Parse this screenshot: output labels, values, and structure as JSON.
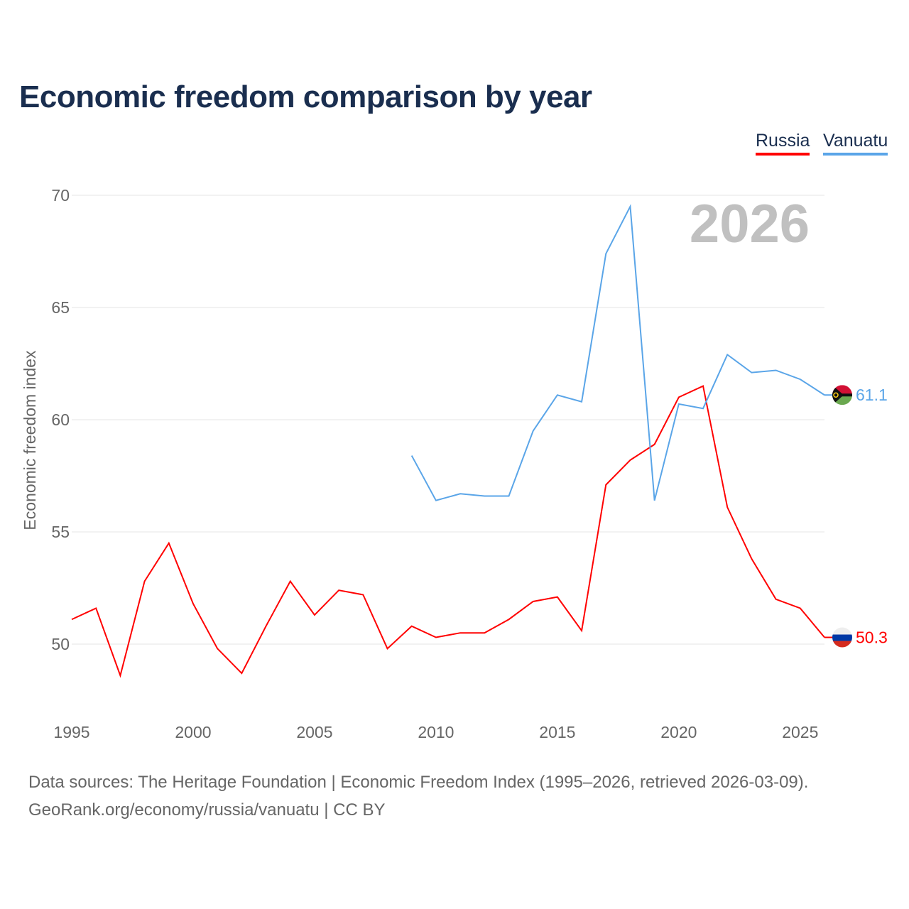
{
  "title": "Economic freedom comparison by year",
  "legend": [
    {
      "name": "Russia",
      "color": "#ff0000"
    },
    {
      "name": "Vanuatu",
      "color": "#5aa5e8"
    }
  ],
  "year_watermark": "2026",
  "source_line1": "Data sources: The Heritage Foundation | Economic Freedom Index (1995–2026, retrieved 2026-03-09).",
  "source_line2": "GeoRank.org/economy/russia/vanuatu | CC BY",
  "chart_data": {
    "type": "line",
    "title": "Economic freedom comparison by year",
    "xlabel": "",
    "ylabel": "Economic freedom index",
    "xlim": [
      1995,
      2026
    ],
    "ylim": [
      47,
      70
    ],
    "xticks": [
      1995,
      2000,
      2005,
      2010,
      2015,
      2020,
      2025
    ],
    "yticks": [
      50,
      55,
      60,
      65,
      70
    ],
    "grid": true,
    "legend_position": "top-right",
    "series": [
      {
        "name": "Russia",
        "color": "#ff0000",
        "end_label": "50.3",
        "x": [
          1995,
          1996,
          1997,
          1998,
          1999,
          2000,
          2001,
          2002,
          2003,
          2004,
          2005,
          2006,
          2007,
          2008,
          2009,
          2010,
          2011,
          2012,
          2013,
          2014,
          2015,
          2016,
          2017,
          2018,
          2019,
          2020,
          2021,
          2022,
          2023,
          2024,
          2025,
          2026
        ],
        "values": [
          51.1,
          51.6,
          48.6,
          52.8,
          54.5,
          51.8,
          49.8,
          48.7,
          50.8,
          52.8,
          51.3,
          52.4,
          52.2,
          49.8,
          50.8,
          50.3,
          50.5,
          50.5,
          51.1,
          51.9,
          52.1,
          50.6,
          57.1,
          58.2,
          58.9,
          61.0,
          61.5,
          56.1,
          53.8,
          52.0,
          51.6,
          50.3
        ]
      },
      {
        "name": "Vanuatu",
        "color": "#5aa5e8",
        "end_label": "61.1",
        "x": [
          2009,
          2010,
          2011,
          2012,
          2013,
          2014,
          2015,
          2016,
          2017,
          2018,
          2019,
          2020,
          2021,
          2022,
          2023,
          2024,
          2025,
          2026
        ],
        "values": [
          58.4,
          56.4,
          56.7,
          56.6,
          56.6,
          59.5,
          61.1,
          60.8,
          67.4,
          69.5,
          56.4,
          60.7,
          60.5,
          62.9,
          62.1,
          62.2,
          61.8,
          61.1
        ]
      }
    ]
  }
}
